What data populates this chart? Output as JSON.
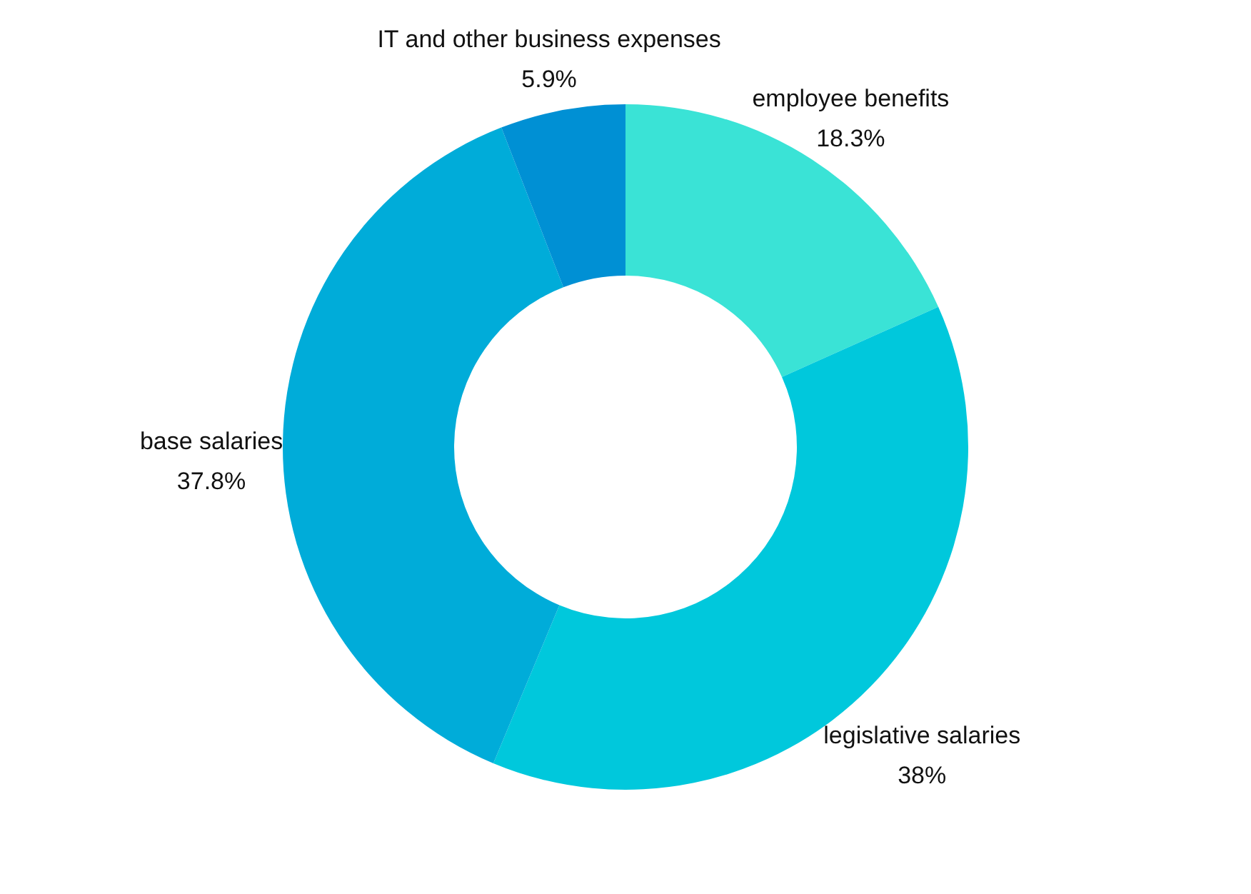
{
  "chart_data": {
    "type": "donut",
    "categories": [
      "employee benefits",
      "legislative salaries",
      "base salaries",
      "IT and other business expenses"
    ],
    "values": [
      18.3,
      38,
      37.8,
      5.9
    ],
    "colors": [
      "#3ae3d6",
      "#00c8dc",
      "#00acd9",
      "#0090d4"
    ],
    "value_labels": [
      "18.3%",
      "38%",
      "37.8%",
      "5.9%"
    ]
  }
}
